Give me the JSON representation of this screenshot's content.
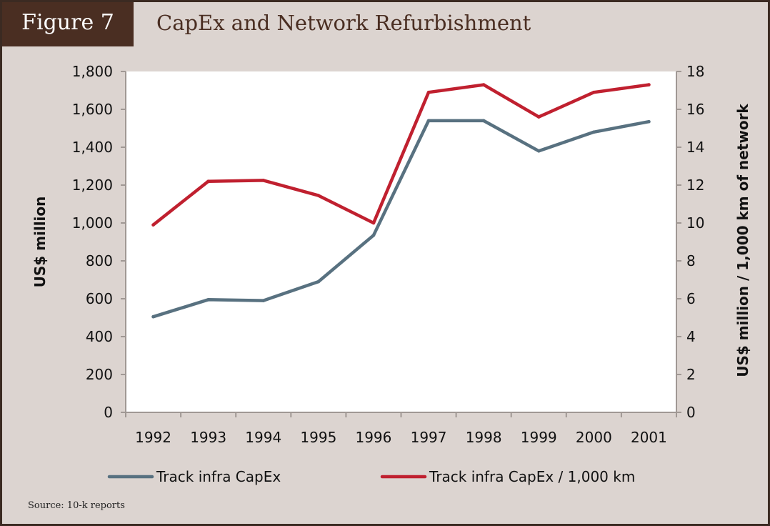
{
  "header": {
    "figure_label": "Figure 7",
    "title": "CapEx and Network Refurbishment"
  },
  "footer": {
    "source": "Source: 10-k reports"
  },
  "colors": {
    "series_1": "#587180",
    "series_2": "#c0202f",
    "header_bg": "#4a2e22",
    "frame_bg": "#dcd4d0",
    "axis": "#a09894"
  },
  "chart_data": {
    "type": "line",
    "title": "CapEx and Network Refurbishment",
    "categories": [
      "1992",
      "1993",
      "1994",
      "1995",
      "1996",
      "1997",
      "1998",
      "1999",
      "2000",
      "2001"
    ],
    "series": [
      {
        "name": "Track infra CapEx",
        "axis": "left",
        "values": [
          505,
          595,
          590,
          690,
          935,
          1540,
          1540,
          1380,
          1480,
          1535
        ]
      },
      {
        "name": "Track infra CapEx / 1,000 km",
        "axis": "right",
        "values": [
          9.9,
          12.2,
          12.25,
          11.45,
          10.0,
          16.9,
          17.3,
          15.6,
          16.9,
          17.3
        ]
      }
    ],
    "ylabel": "US$ million",
    "y2label": "US$ million / 1,000 km of network",
    "ylim": [
      0,
      1800
    ],
    "y2lim": [
      0,
      18
    ],
    "yticks": [
      "0",
      "200",
      "400",
      "600",
      "800",
      "1,000",
      "1,200",
      "1,400",
      "1,600",
      "1,800"
    ],
    "y2ticks": [
      "0",
      "2",
      "4",
      "6",
      "8",
      "10",
      "12",
      "14",
      "16",
      "18"
    ],
    "grid": false,
    "legend_position": "bottom"
  }
}
